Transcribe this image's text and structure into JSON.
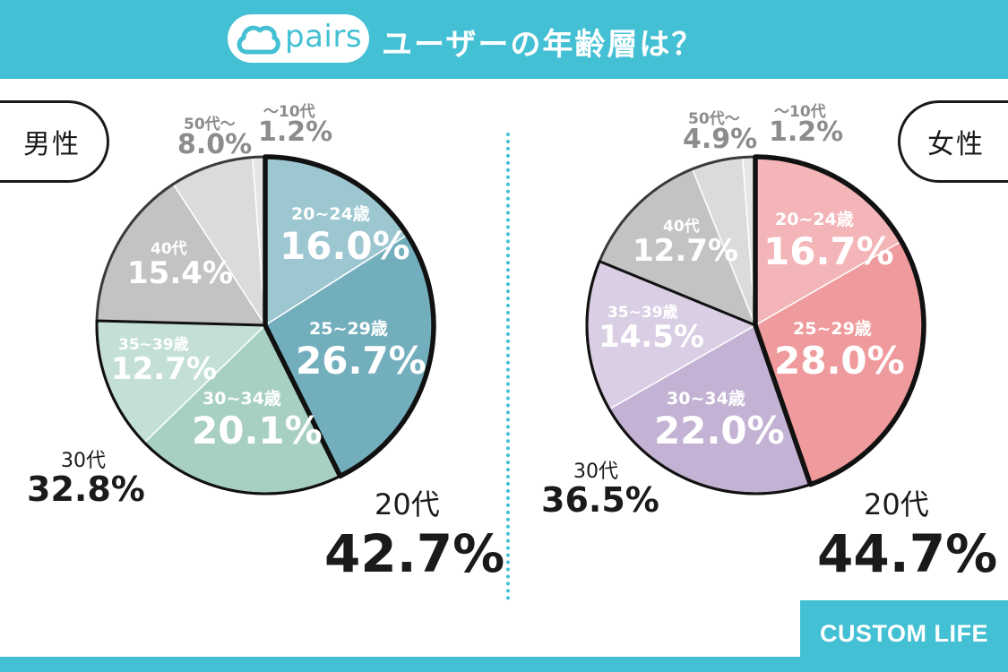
{
  "header": {
    "logo_text": "pairs",
    "title": "ユーザーの年齢層は？"
  },
  "brand": "CUSTOM LIFE",
  "colors": {
    "accent": "#43c0d3"
  },
  "chart_data": [
    {
      "type": "pie",
      "title": "男性",
      "slices": [
        {
          "label": "20~24歳",
          "value": 16.0,
          "color": "#9cc7d1"
        },
        {
          "label": "25~29歳",
          "value": 26.7,
          "color": "#73aebd"
        },
        {
          "label": "30~34歳",
          "value": 20.1,
          "color": "#a8d0c2"
        },
        {
          "label": "35~39歳",
          "value": 12.7,
          "color": "#c4e0d6"
        },
        {
          "label": "40代",
          "value": 15.4,
          "color": "#c3c3c3"
        },
        {
          "label": "50代〜",
          "value": 8.0,
          "color": "#dbdbdb"
        },
        {
          "label": "〜10代",
          "value": 1.2,
          "color": "#e6e6e6"
        }
      ],
      "groups": [
        {
          "label": "20代",
          "value": 42.7
        },
        {
          "label": "30代",
          "value": 32.8
        }
      ]
    },
    {
      "type": "pie",
      "title": "女性",
      "slices": [
        {
          "label": "20~24歳",
          "value": 16.7,
          "color": "#f3b5b7"
        },
        {
          "label": "25~29歳",
          "value": 28.0,
          "color": "#ef9a9c"
        },
        {
          "label": "30~34歳",
          "value": 22.0,
          "color": "#c3b2d3"
        },
        {
          "label": "35~39歳",
          "value": 14.5,
          "color": "#d9cee4"
        },
        {
          "label": "40代",
          "value": 12.7,
          "color": "#c3c3c3"
        },
        {
          "label": "50代〜",
          "value": 4.9,
          "color": "#dbdbdb"
        },
        {
          "label": "〜10代",
          "value": 1.2,
          "color": "#e6e6e6"
        }
      ],
      "groups": [
        {
          "label": "20代",
          "value": 44.7
        },
        {
          "label": "30代",
          "value": 36.5
        }
      ]
    }
  ]
}
